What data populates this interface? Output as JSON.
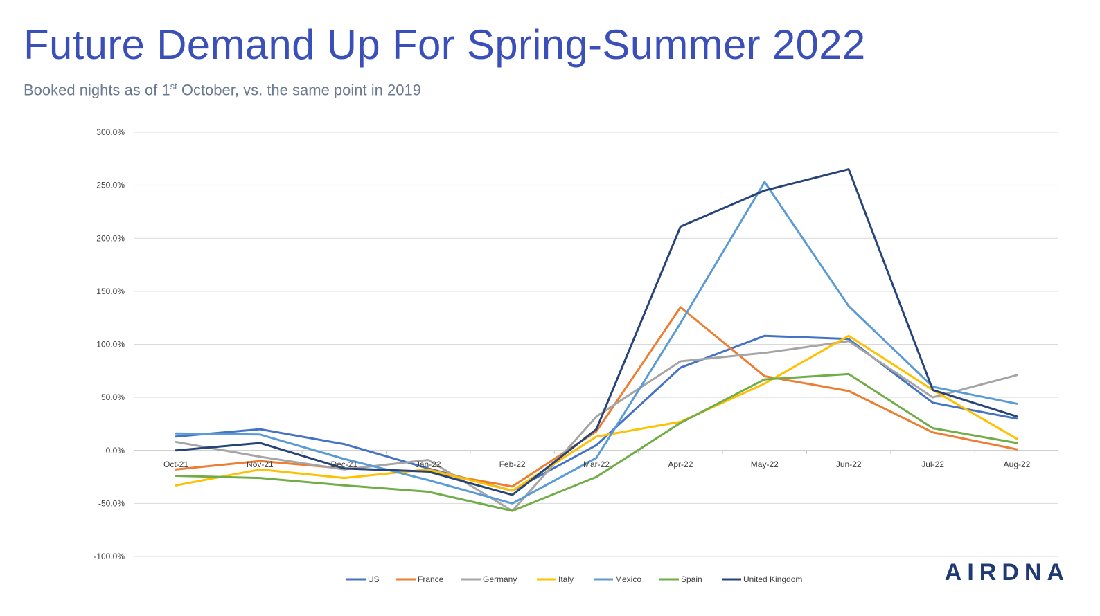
{
  "header": {
    "title": "Future Demand Up For Spring-Summer 2022",
    "subtitle_pre": "Booked nights as of 1",
    "subtitle_sup": "st",
    "subtitle_post": " October, vs. the same point in 2019"
  },
  "logo": {
    "text": "AIRDNA"
  },
  "chart_data": {
    "type": "line",
    "title": "Future Demand Up For Spring-Summer 2022",
    "subtitle": "Booked nights as of 1st October, vs. the same point in 2019",
    "xlabel": "",
    "ylabel": "",
    "categories": [
      "Oct-21",
      "Nov-21",
      "Dec-21",
      "Jan-22",
      "Feb-22",
      "Mar-22",
      "Apr-22",
      "May-22",
      "Jun-22",
      "Jul-22",
      "Aug-22"
    ],
    "yticks": [
      "300.0%",
      "250.0%",
      "200.0%",
      "150.0%",
      "100.0%",
      "50.0%",
      "0.0%",
      "-50.0%",
      "-100.0%"
    ],
    "ylim": [
      -100,
      300
    ],
    "grid": true,
    "legend": "bottom",
    "series": [
      {
        "name": "US",
        "color": "#4472c4",
        "values": [
          13,
          20,
          6,
          -17,
          -38,
          5,
          78,
          108,
          105,
          45,
          30
        ]
      },
      {
        "name": "France",
        "color": "#ed7d31",
        "values": [
          -18,
          -10,
          -17,
          -20,
          -34,
          18,
          135,
          70,
          56,
          17,
          1
        ]
      },
      {
        "name": "Germany",
        "color": "#a5a5a5",
        "values": [
          8,
          -6,
          -18,
          -9,
          -57,
          32,
          84,
          92,
          103,
          50,
          71
        ]
      },
      {
        "name": "Italy",
        "color": "#ffc000",
        "values": [
          -33,
          -18,
          -26,
          -18,
          -38,
          13,
          27,
          63,
          108,
          57,
          11
        ]
      },
      {
        "name": "Mexico",
        "color": "#5b9bd5",
        "values": [
          16,
          15,
          -8,
          -28,
          -50,
          -7,
          120,
          253,
          136,
          60,
          44
        ]
      },
      {
        "name": "Spain",
        "color": "#70ad47",
        "values": [
          -24,
          -26,
          -33,
          -39,
          -57,
          -25,
          26,
          67,
          72,
          21,
          7
        ]
      },
      {
        "name": "United Kingdom",
        "color": "#264478",
        "values": [
          0,
          7,
          -17,
          -20,
          -42,
          20,
          211,
          245,
          265,
          57,
          32
        ]
      }
    ]
  }
}
